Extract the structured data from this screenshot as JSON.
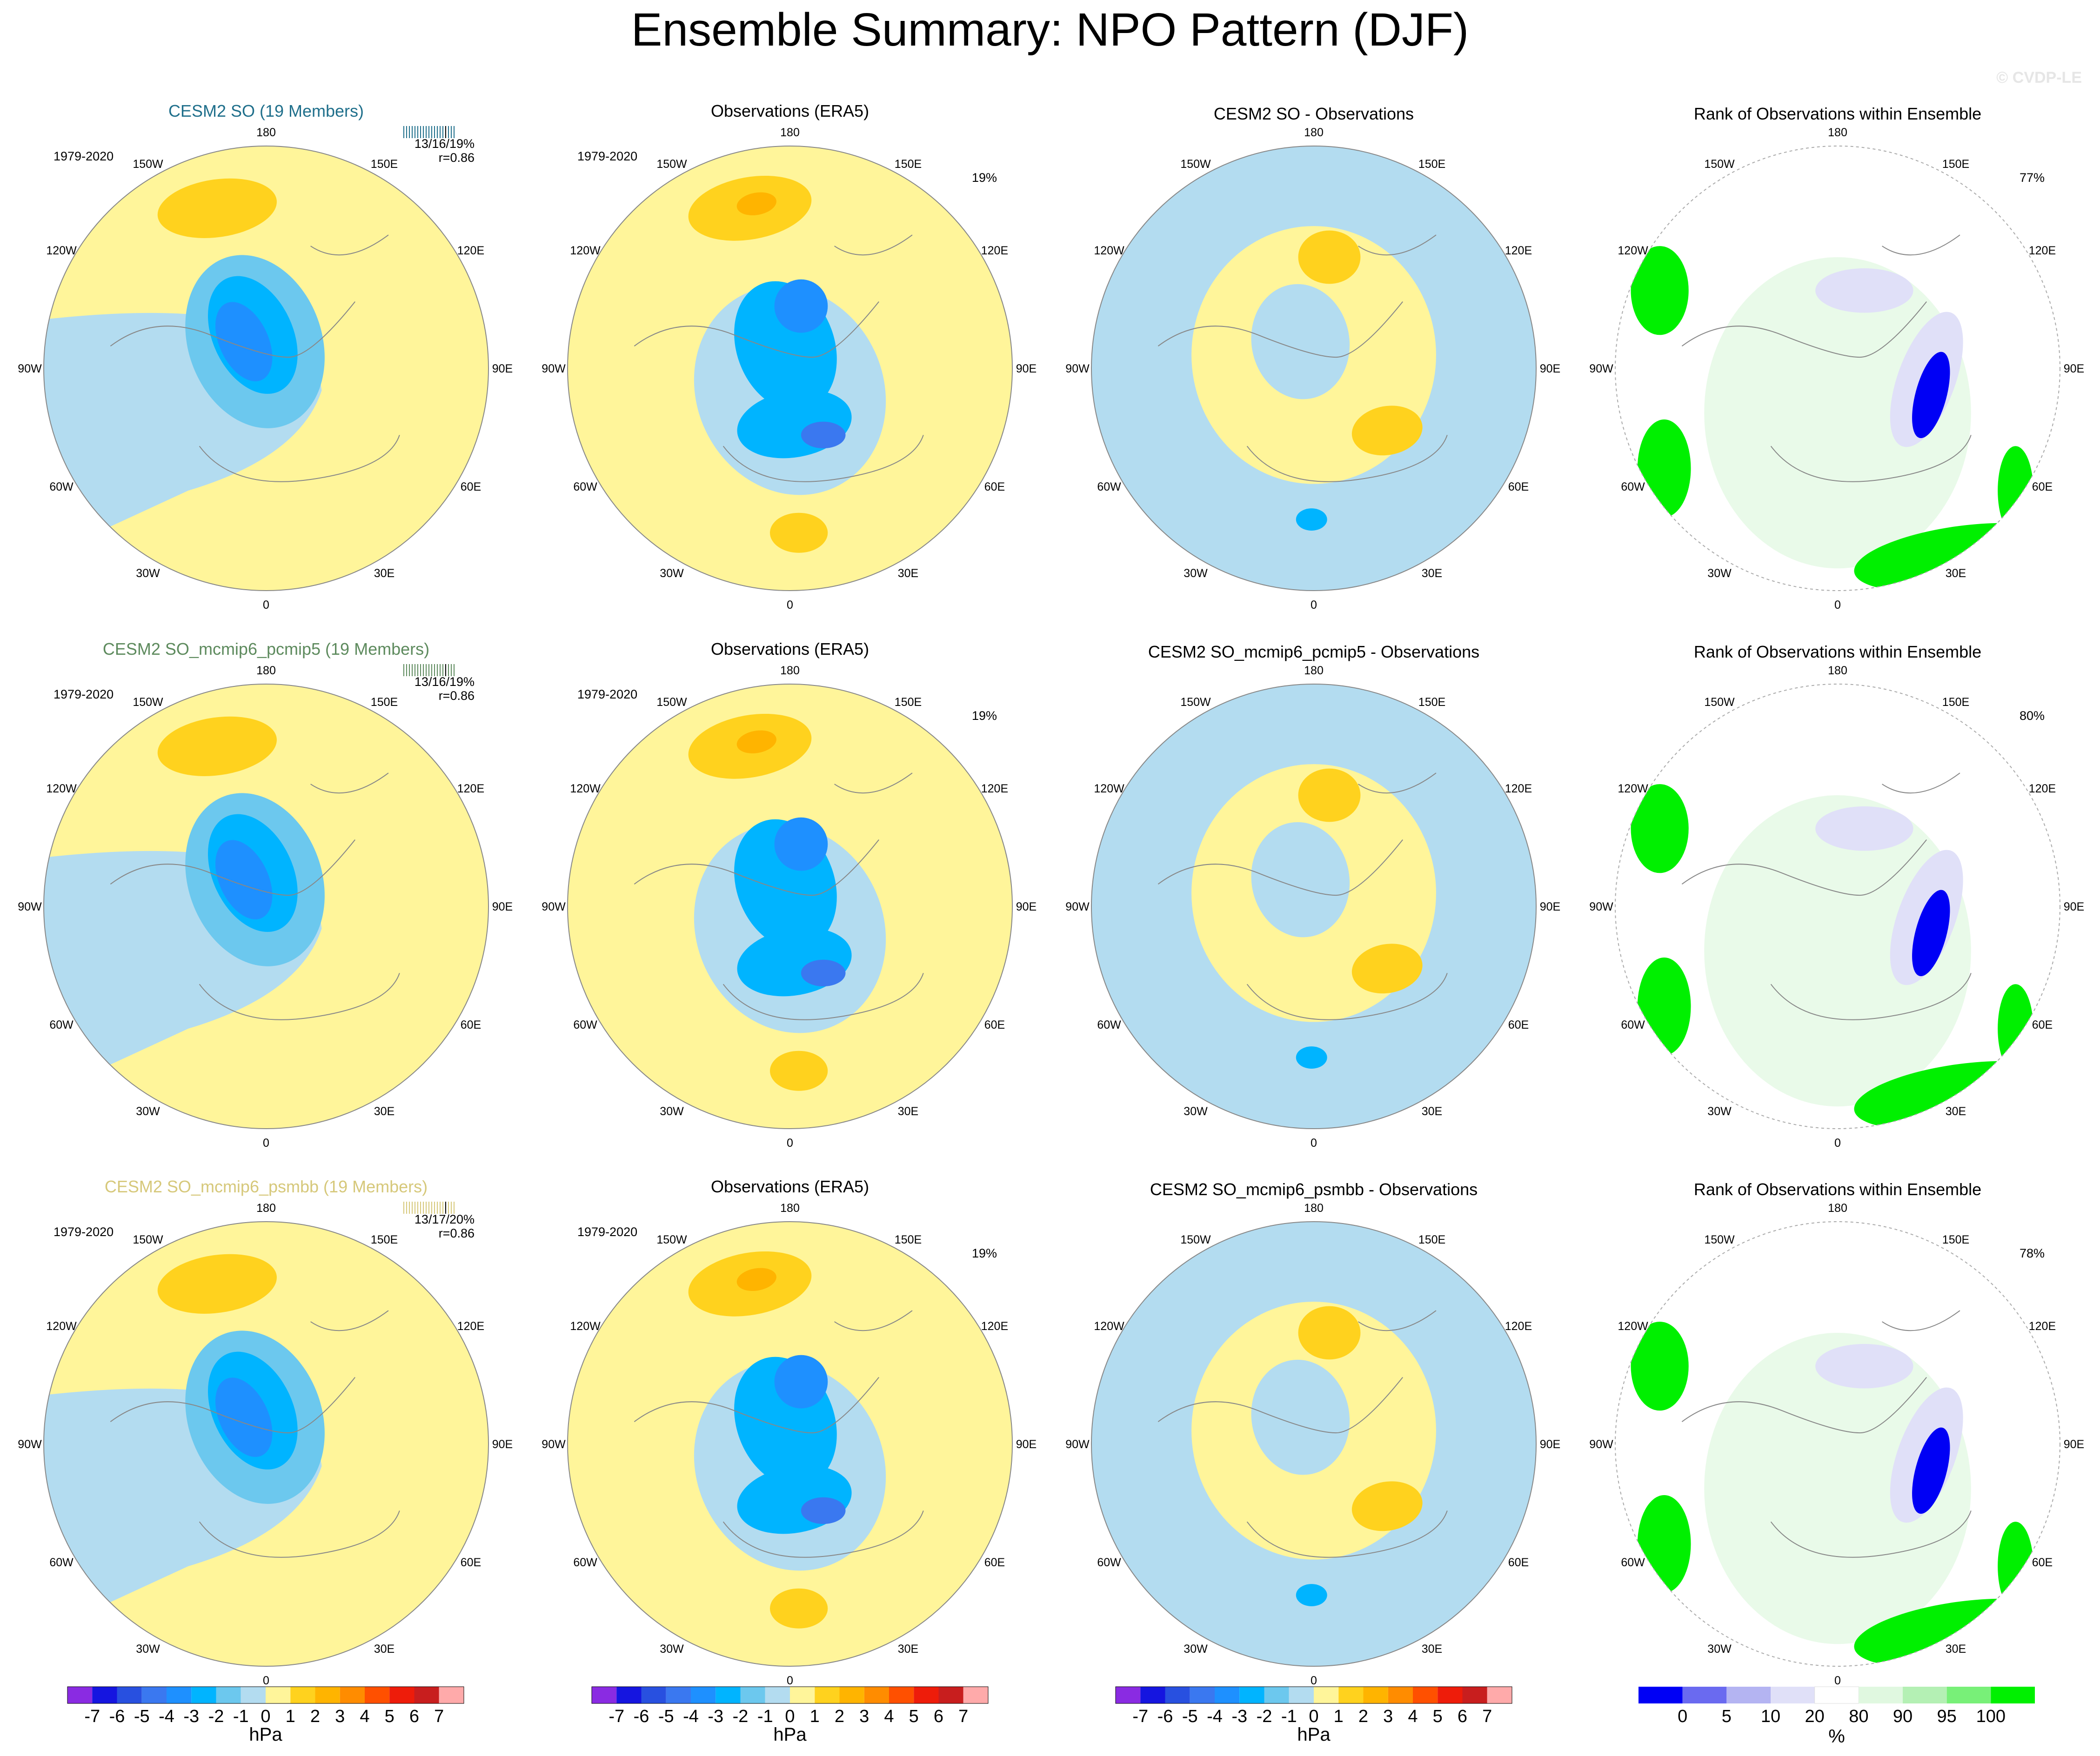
{
  "figure": {
    "title": "Ensemble Summary: NPO Pattern (DJF)",
    "watermark": "© CVDP-LE"
  },
  "colors": {
    "ocean": "#b3dcf0",
    "land_line": "#888888",
    "background": "#ffffff"
  },
  "lon_labels": [
    "180",
    "150E",
    "120E",
    "90E",
    "60E",
    "30E",
    "0",
    "30W",
    "60W",
    "90W",
    "120W",
    "150W"
  ],
  "rows": [
    {
      "col1": {
        "title": "CESM2 SO (19 Members)",
        "title_color": "#1f6f8b",
        "period": "1979-2020",
        "stat": "13/16/19%",
        "corr": "r=0.86"
      },
      "col2": {
        "title": "Observations (ERA5)",
        "period": "1979-2020",
        "pct": "19%"
      },
      "col3": {
        "title": "CESM2 SO - Observations"
      },
      "col4": {
        "title": "Rank of Observations within Ensemble",
        "pct": "77%"
      }
    },
    {
      "col1": {
        "title": "CESM2 SO_mcmip6_pcmip5 (19 Members)",
        "title_color": "#5d8a5d",
        "period": "1979-2020",
        "stat": "13/16/19%",
        "corr": "r=0.86"
      },
      "col2": {
        "title": "Observations (ERA5)",
        "period": "1979-2020",
        "pct": "19%"
      },
      "col3": {
        "title": "CESM2 SO_mcmip6_pcmip5 - Observations"
      },
      "col4": {
        "title": "Rank of Observations within Ensemble",
        "pct": "80%"
      }
    },
    {
      "col1": {
        "title": "CESM2 SO_mcmip6_psmbb (19 Members)",
        "title_color": "#d6c87a",
        "period": "1979-2020",
        "stat": "13/17/20%",
        "corr": "r=0.86"
      },
      "col2": {
        "title": "Observations (ERA5)",
        "period": "1979-2020",
        "pct": "19%"
      },
      "col3": {
        "title": "CESM2 SO_mcmip6_psmbb - Observations"
      },
      "col4": {
        "title": "Rank of Observations within Ensemble",
        "pct": "78%"
      }
    }
  ],
  "colorbar_hpa": {
    "unit": "hPa",
    "labels": [
      "-7",
      "-6",
      "-5",
      "-4",
      "-3",
      "-2",
      "-1",
      "0",
      "1",
      "2",
      "3",
      "4",
      "5",
      "6",
      "7"
    ],
    "colors": [
      "#8a2be2",
      "#1515e0",
      "#2850e0",
      "#3a78f0",
      "#1e90ff",
      "#00b4ff",
      "#6cc8ee",
      "#b3dcf0",
      "#fff59a",
      "#ffd21e",
      "#ffb400",
      "#ff8c00",
      "#ff5000",
      "#ee1c0a",
      "#c81e1e",
      "#ffaaaa"
    ]
  },
  "colorbar_rank": {
    "unit": "%",
    "labels": [
      "0",
      "5",
      "10",
      "20",
      "80",
      "90",
      "95",
      "100"
    ],
    "colors": [
      "#0000f5",
      "#6a6af0",
      "#b4b4f2",
      "#e0e0f8",
      "#ffffff",
      "#e0f8e0",
      "#b4f0b4",
      "#78f078",
      "#00f000"
    ]
  },
  "chart_data": [
    {
      "type": "heatmap",
      "title": "CESM2 SO (19 Members)",
      "units": "hPa",
      "projection": "north polar stereographic",
      "stats": [
        "13/16/19%",
        "r=0.86"
      ]
    },
    {
      "type": "heatmap",
      "title": "Observations (ERA5)",
      "units": "hPa",
      "projection": "north polar stereographic",
      "stats": [
        "19%"
      ]
    },
    {
      "type": "heatmap",
      "title": "CESM2 SO - Observations",
      "units": "hPa",
      "projection": "north polar stereographic"
    },
    {
      "type": "heatmap",
      "title": "Rank of Observations within Ensemble",
      "units": "%",
      "projection": "north polar stereographic",
      "stats": [
        "77%"
      ]
    },
    {
      "type": "heatmap",
      "title": "CESM2 SO_mcmip6_pcmip5 (19 Members)",
      "units": "hPa",
      "stats": [
        "13/16/19%",
        "r=0.86"
      ]
    },
    {
      "type": "heatmap",
      "title": "Observations (ERA5)",
      "units": "hPa",
      "stats": [
        "19%"
      ]
    },
    {
      "type": "heatmap",
      "title": "CESM2 SO_mcmip6_pcmip5 - Observations",
      "units": "hPa"
    },
    {
      "type": "heatmap",
      "title": "Rank of Observations within Ensemble",
      "units": "%",
      "stats": [
        "80%"
      ]
    },
    {
      "type": "heatmap",
      "title": "CESM2 SO_mcmip6_psmbb (19 Members)",
      "units": "hPa",
      "stats": [
        "13/17/20%",
        "r=0.86"
      ]
    },
    {
      "type": "heatmap",
      "title": "Observations (ERA5)",
      "units": "hPa",
      "stats": [
        "19%"
      ]
    },
    {
      "type": "heatmap",
      "title": "CESM2 SO_mcmip6_psmbb - Observations",
      "units": "hPa"
    },
    {
      "type": "heatmap",
      "title": "Rank of Observations within Ensemble",
      "units": "%",
      "stats": [
        "78%"
      ]
    }
  ]
}
